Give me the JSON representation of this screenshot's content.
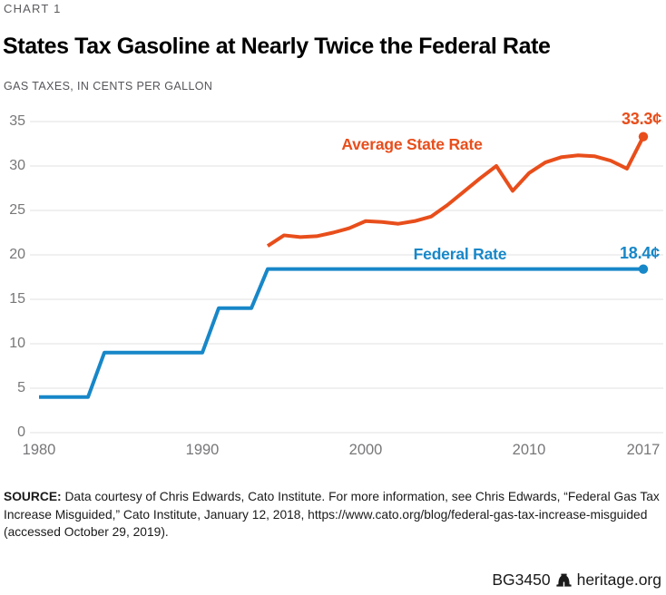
{
  "header": {
    "kicker": "CHART 1",
    "title": "States Tax Gasoline at Nearly Twice the Federal Rate",
    "subtitle": "GAS TAXES, IN CENTS PER GALLON"
  },
  "chart_data": {
    "type": "line",
    "title": "States Tax Gasoline at Nearly Twice the Federal Rate",
    "ylabel": "GAS TAXES, IN CENTS PER GALLON",
    "xlim": [
      1980,
      2017
    ],
    "ylim": [
      0,
      35
    ],
    "x_ticks": [
      1980,
      1990,
      2000,
      2010,
      2017
    ],
    "y_ticks": [
      0,
      5,
      10,
      15,
      20,
      25,
      30,
      35
    ],
    "grid": "horizontal",
    "legend_position": "inline-labels",
    "colors": {
      "federal": "#1787c8",
      "state": "#e84e1b",
      "gridline": "#e2e2e2"
    },
    "series": [
      {
        "key": "federal-rate",
        "name": "Federal Rate",
        "color": "#1787c8",
        "start_year": 1980,
        "end_label": "18.4¢",
        "values": [
          4,
          4,
          4,
          4,
          9,
          9,
          9,
          9,
          9,
          9,
          9,
          14,
          14,
          14,
          18.4,
          18.4,
          18.4,
          18.4,
          18.4,
          18.4,
          18.4,
          18.4,
          18.4,
          18.4,
          18.4,
          18.4,
          18.4,
          18.4,
          18.4,
          18.4,
          18.4,
          18.4,
          18.4,
          18.4,
          18.4,
          18.4,
          18.4,
          18.4
        ]
      },
      {
        "key": "state-rate",
        "name": "Average State Rate",
        "color": "#e84e1b",
        "start_year": 1994,
        "end_label": "33.3¢",
        "values": [
          21,
          22.2,
          22,
          22.1,
          22.5,
          23,
          23.8,
          23.7,
          23.5,
          23.8,
          24.3,
          25.6,
          27.1,
          28.6,
          30,
          27.2,
          29.2,
          30.4,
          31,
          31.2,
          31.1,
          30.6,
          29.7,
          33.3
        ]
      }
    ]
  },
  "source": {
    "label": "SOURCE:",
    "text": "Data courtesy of Chris Edwards, Cato Institute. For more information, see Chris Edwards, “Federal Gas Tax Increase Misguided,” Cato Institute, January 12, 2018, https://www.cato.org/blog/federal-gas-tax-increase-misguided (accessed October 29, 2019)."
  },
  "footer": {
    "report_id": "BG3450",
    "site": "heritage.org"
  }
}
